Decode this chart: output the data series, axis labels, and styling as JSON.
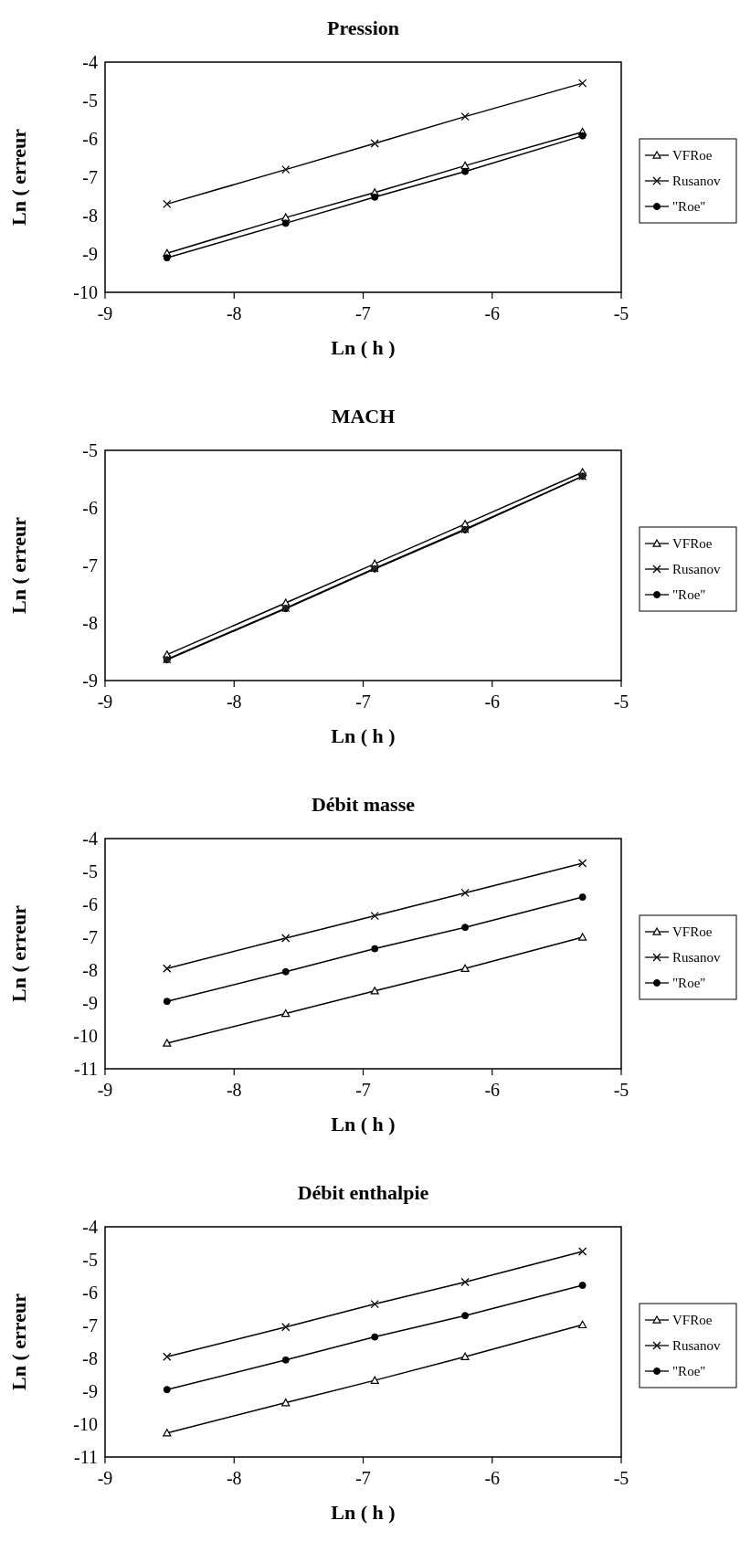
{
  "chart_data": [
    {
      "type": "line",
      "title": "Pression",
      "xlabel": "Ln ( h )",
      "ylabel": "Ln ( erreur",
      "xlim": [
        -9,
        -5
      ],
      "xticks": [
        -9,
        -8,
        -7,
        -6,
        -5
      ],
      "ylim": [
        -10,
        -4
      ],
      "yticks": [
        -10,
        -9,
        -8,
        -7,
        -6,
        -5,
        -4
      ],
      "legend": "right",
      "grid": false,
      "x": [
        -8.52,
        -7.6,
        -6.91,
        -6.21,
        -5.3
      ],
      "series": [
        {
          "name": "VFRoe",
          "color": "#000000",
          "marker": "triangle",
          "values": [
            -8.98,
            -8.05,
            -7.4,
            -6.7,
            -5.82
          ]
        },
        {
          "name": "Rusanov",
          "color": "#000000",
          "marker": "cross",
          "values": [
            -7.7,
            -6.8,
            -6.12,
            -5.42,
            -4.55
          ]
        },
        {
          "name": "\"Roe\"",
          "color": "#000000",
          "marker": "circle",
          "values": [
            -9.1,
            -8.2,
            -7.52,
            -6.85,
            -5.92
          ]
        }
      ]
    },
    {
      "type": "line",
      "title": "MACH",
      "xlabel": "Ln ( h )",
      "ylabel": "Ln ( erreur",
      "xlim": [
        -9,
        -5
      ],
      "xticks": [
        -9,
        -8,
        -7,
        -6,
        -5
      ],
      "ylim": [
        -9,
        -5
      ],
      "yticks": [
        -9,
        -8,
        -7,
        -6,
        -5
      ],
      "legend": "right",
      "grid": false,
      "x": [
        -8.52,
        -7.6,
        -6.91,
        -6.21,
        -5.3
      ],
      "series": [
        {
          "name": "VFRoe",
          "color": "#000000",
          "marker": "triangle",
          "values": [
            -8.55,
            -7.65,
            -6.97,
            -6.28,
            -5.38
          ]
        },
        {
          "name": "Rusanov",
          "color": "#000000",
          "marker": "cross",
          "values": [
            -8.63,
            -7.74,
            -7.05,
            -6.37,
            -5.45
          ]
        },
        {
          "name": "\"Roe\"",
          "color": "#000000",
          "marker": "circle",
          "values": [
            -8.64,
            -7.75,
            -7.06,
            -6.38,
            -5.45
          ]
        }
      ]
    },
    {
      "type": "line",
      "title": "Débit masse",
      "xlabel": "Ln ( h )",
      "ylabel": "Ln ( erreur",
      "xlim": [
        -9,
        -5
      ],
      "xticks": [
        -9,
        -8,
        -7,
        -6,
        -5
      ],
      "ylim": [
        -11,
        -4
      ],
      "yticks": [
        -11,
        -10,
        -9,
        -8,
        -7,
        -6,
        -5,
        -4
      ],
      "legend": "right",
      "grid": false,
      "x": [
        -8.52,
        -7.6,
        -6.91,
        -6.21,
        -5.3
      ],
      "series": [
        {
          "name": "VFRoe",
          "color": "#000000",
          "marker": "triangle",
          "values": [
            -10.22,
            -9.32,
            -8.63,
            -7.95,
            -7.0
          ]
        },
        {
          "name": "Rusanov",
          "color": "#000000",
          "marker": "cross",
          "values": [
            -7.95,
            -7.03,
            -6.35,
            -5.65,
            -4.75
          ]
        },
        {
          "name": "\"Roe\"",
          "color": "#000000",
          "marker": "circle",
          "values": [
            -8.95,
            -8.05,
            -7.35,
            -6.7,
            -5.78
          ]
        }
      ]
    },
    {
      "type": "line",
      "title": "Débit enthalpie",
      "xlabel": "Ln ( h )",
      "ylabel": "Ln ( erreur",
      "xlim": [
        -9,
        -5
      ],
      "xticks": [
        -9,
        -8,
        -7,
        -6,
        -5
      ],
      "ylim": [
        -11,
        -4
      ],
      "yticks": [
        -11,
        -10,
        -9,
        -8,
        -7,
        -6,
        -5,
        -4
      ],
      "legend": "right",
      "grid": false,
      "x": [
        -8.52,
        -7.6,
        -6.91,
        -6.21,
        -5.3
      ],
      "series": [
        {
          "name": "VFRoe",
          "color": "#000000",
          "marker": "triangle",
          "values": [
            -10.27,
            -9.35,
            -8.67,
            -7.95,
            -6.98
          ]
        },
        {
          "name": "Rusanov",
          "color": "#000000",
          "marker": "cross",
          "values": [
            -7.95,
            -7.05,
            -6.35,
            -5.68,
            -4.75
          ]
        },
        {
          "name": "\"Roe\"",
          "color": "#000000",
          "marker": "circle",
          "values": [
            -8.95,
            -8.05,
            -7.35,
            -6.7,
            -5.78
          ]
        }
      ]
    }
  ]
}
